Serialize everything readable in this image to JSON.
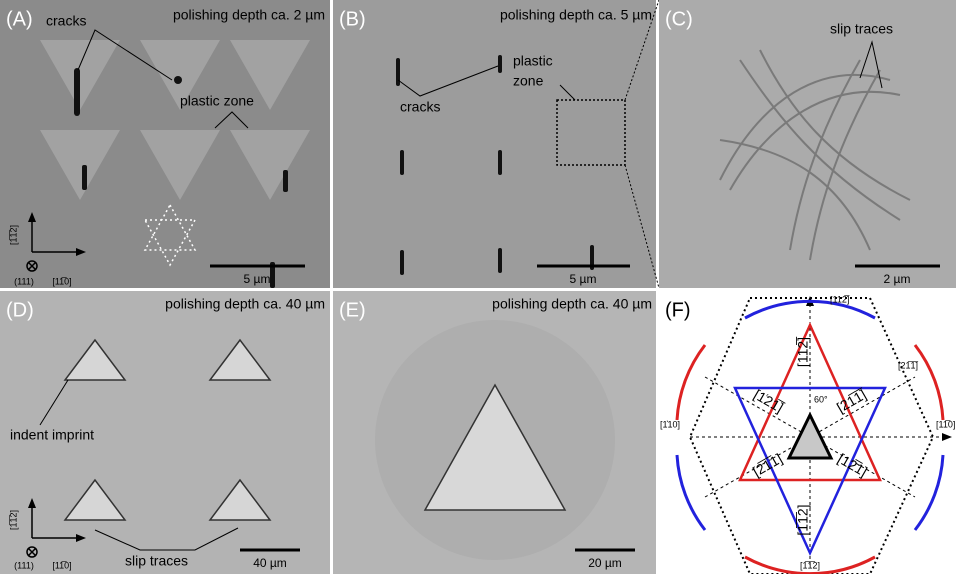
{
  "panels": [
    {
      "label": "(A)",
      "caption": "polishing depth ca. 2 µm",
      "scale_bar": "5 µm",
      "annotations": [
        "cracks",
        "plastic zone"
      ],
      "axes": {
        "up": "[1̅1̅2]",
        "right": "[11̅0]",
        "out": "(111)"
      }
    },
    {
      "label": "(B)",
      "caption": "polishing depth ca. 5 µm",
      "scale_bar": "5 µm",
      "annotations": [
        "cracks",
        "plastic",
        "zone"
      ]
    },
    {
      "label": "(C)",
      "scale_bar": "2 µm",
      "annotations": [
        "slip traces"
      ]
    },
    {
      "label": "(D)",
      "caption": "polishing depth ca. 40 µm",
      "scale_bar": "40 µm",
      "annotations": [
        "indent imprint",
        "slip traces"
      ],
      "axes": {
        "up": "[1̅1̅2]",
        "right": "[11̅0]",
        "out": "(111)"
      }
    },
    {
      "label": "(E)",
      "caption": "polishing depth ca. 40 µm",
      "scale_bar": "20 µm"
    },
    {
      "label": "(F)",
      "directions": {
        "top": "[112̅]",
        "bottom": "[1̅1̅2]",
        "left": "[1͐10]",
        "right": "[11̅0]",
        "upper_right": "[21̅1̅]",
        "angle": "60°",
        "inner": [
          "[112̅]",
          "[1͑21̅]",
          "[21̅1̅]",
          "[2̅1̅1]",
          "[12̅1]",
          "[1̅1̅2]"
        ]
      }
    }
  ]
}
